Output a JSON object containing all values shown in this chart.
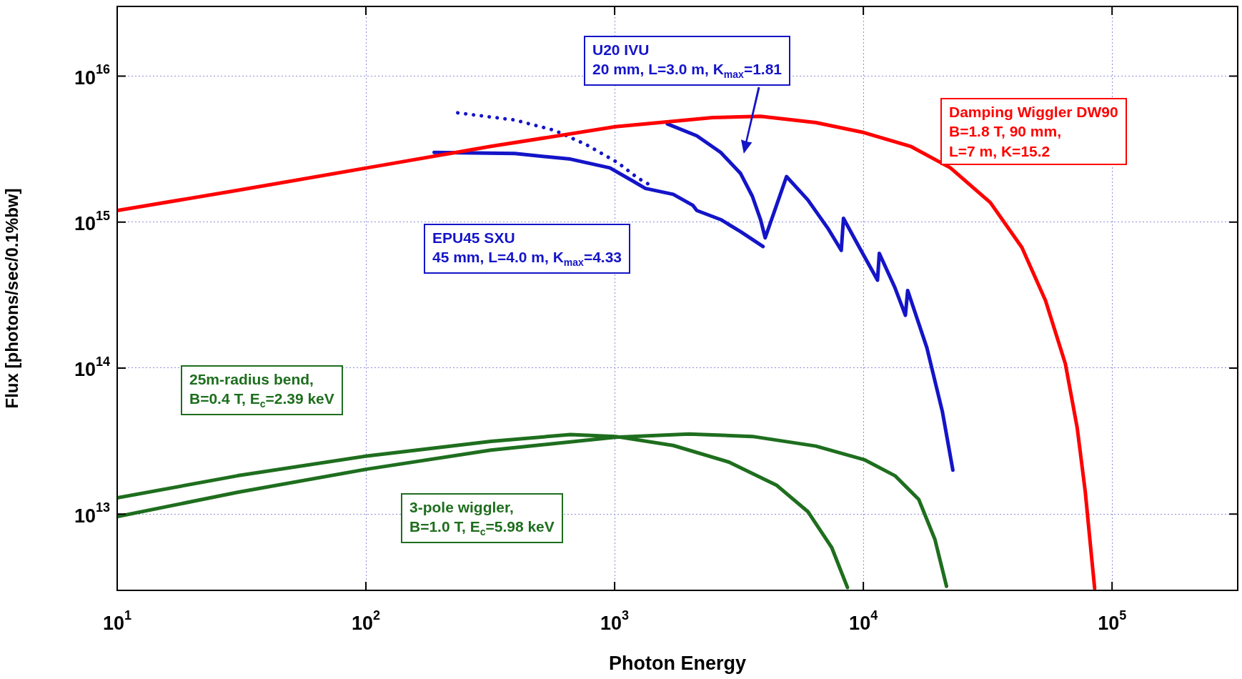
{
  "chart_data": {
    "type": "line",
    "xlabel": "Photon Energy",
    "ylabel": "Flux [photons/sec/0.1%bw]",
    "log": "xy",
    "grid": true,
    "legend": false,
    "marker": "none",
    "xlim": [
      10,
      320000
    ],
    "ylim": [
      3000000000000.0,
      3e+16
    ],
    "xticks": [
      {
        "value": 10,
        "label": "10$^{1}$"
      },
      {
        "value": 100,
        "label": "10$^{2}$"
      },
      {
        "value": 1000,
        "label": "10$^{3}$"
      },
      {
        "value": 10000,
        "label": "10$^{4}$"
      },
      {
        "value": 100000,
        "label": "10$^{5}$"
      }
    ],
    "yticks": [
      {
        "value": 10000000000000.0,
        "label": "10$^{13}$"
      },
      {
        "value": 100000000000000.0,
        "label": "10$^{14}$"
      },
      {
        "value": 1000000000000000.0,
        "label": "10$^{15}$"
      },
      {
        "value": 1e+16,
        "label": "10$^{16}$"
      }
    ],
    "series": [
      {
        "name": "Damping Wiggler DW90\nB=1.8 T, 90 mm,\nL=7 m, K=15.2",
        "color": "#ff0000",
        "x": [
          10,
          30.5,
          101,
          318,
          1007,
          2480,
          3860,
          6440,
          10070,
          15500,
          22400,
          32400,
          43400,
          54000,
          64900,
          72400,
          78000,
          82600,
          85100
        ],
        "values": [
          1200000000000000.0,
          1650000000000000.0,
          2350000000000000.0,
          3300000000000000.0,
          4500000000000000.0,
          5200000000000000.0,
          5300000000000000.0,
          4800000000000000.0,
          4100000000000000.0,
          3300000000000000.0,
          2350000000000000.0,
          1360000000000000.0,
          670000000000000.0,
          290000000000000.0,
          107000000000000.0,
          39000000000000.0,
          14300000000000.0,
          5200000000000.0,
          3100000000000.0
        ]
      },
      {
        "name": "EPU45 SXU\n45 mm, L=4.0 m, K$_{max}$=4.33",
        "color": "#1414c8",
        "x": [
          188,
          397,
          664,
          957,
          1190,
          1330,
          1720,
          2065,
          2140,
          2670,
          3210,
          3950
        ],
        "values": [
          3000000000000000.0,
          2950000000000000.0,
          2700000000000000.0,
          2350000000000000.0,
          1900000000000000.0,
          1700000000000000.0,
          1550000000000000.0,
          1300000000000000.0,
          1200000000000000.0,
          1040000000000000.0,
          860000000000000.0,
          680000000000000.0
        ]
      },
      {
        "color": "#1414c8",
        "line_style": "dotted",
        "x": [
          234,
          397,
          573,
          767,
          1030,
          1240,
          1400
        ],
        "values": [
          5600000000000000.0,
          5000000000000000.0,
          4250000000000000.0,
          3400000000000000.0,
          2550000000000000.0,
          2000000000000000.0,
          1780000000000000.0
        ]
      },
      {
        "name": "U20 IVU\n20 mm, L=3.0 m, K$_{max}$=1.81",
        "color": "#1414c8",
        "x": [
          1630,
          2140,
          2670,
          3210,
          3580,
          3860,
          4030,
          4910,
          5980,
          7190,
          8150,
          8320,
          9640,
          11400,
          11590,
          13400,
          14760,
          15070,
          18000,
          20800,
          22900
        ],
        "values": [
          4700000000000000.0,
          3900000000000000.0,
          3000000000000000.0,
          2150000000000000.0,
          1500000000000000.0,
          1040000000000000.0,
          780000000000000.0,
          2050000000000000.0,
          1420000000000000.0,
          910000000000000.0,
          640000000000000.0,
          1060000000000000.0,
          670000000000000.0,
          400000000000000.0,
          610000000000000.0,
          355000000000000.0,
          230000000000000.0,
          340000000000000.0,
          138000000000000.0,
          50000000000000.0,
          20000000000000.0
        ]
      },
      {
        "name": "25m-radius bend,\nB=0.4 T, E$_{c}$=2.39 keV",
        "color": "#1e6e1e",
        "x": [
          10,
          30.5,
          101,
          318,
          664,
          1007,
          1720,
          2880,
          4470,
          5980,
          7460,
          8630
        ],
        "values": [
          12900000000000.0,
          18300000000000.0,
          25000000000000.0,
          31500000000000.0,
          35000000000000.0,
          34000000000000.0,
          29500000000000.0,
          22700000000000.0,
          15800000000000.0,
          10400000000000.0,
          5900000000000.0,
          3140000000000.0
        ]
      },
      {
        "name": "3-pole wiggler,\nB=1.0 T, E$_{c}$=5.98 keV",
        "color": "#1e6e1e",
        "x": [
          10,
          30.5,
          101,
          318,
          1007,
          1990,
          3580,
          6440,
          10070,
          13400,
          16700,
          19400,
          21600
        ],
        "values": [
          9600000000000.0,
          14100000000000.0,
          20300000000000.0,
          27400000000000.0,
          33600000000000.0,
          35300000000000.0,
          34000000000000.0,
          29200000000000.0,
          23600000000000.0,
          18300000000000.0,
          12600000000000.0,
          6700000000000.0,
          3200000000000.0
        ]
      }
    ]
  }
}
